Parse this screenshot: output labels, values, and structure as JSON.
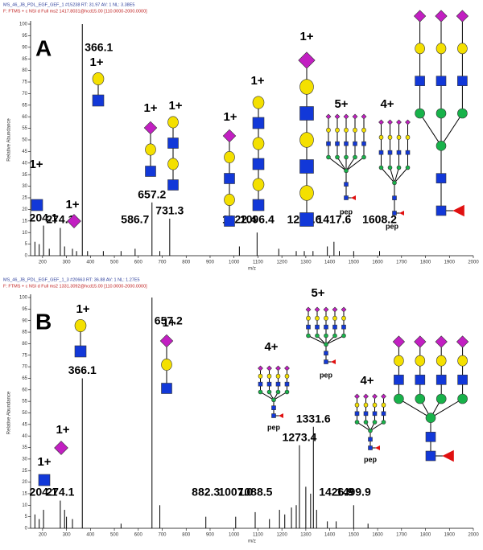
{
  "chart_data": [
    {
      "type": "bar",
      "panel": "A",
      "header": [
        "MS_46_JB_PDL_EGF_GEF_1 #15238 RT: 31.97 AV: 1 NL: 3.38E5",
        "F: FTMS + c NSI d Full ms2 1417.8031@hcd15.00 [110.0000-2000.0000]"
      ],
      "y_label": "Relative Abundance",
      "x_label": "m/z",
      "x": [
        168,
        186,
        204.1,
        228,
        274.1,
        292,
        325,
        342,
        366.1,
        388,
        454,
        528,
        586.7,
        657.2,
        690,
        731.3,
        1022.4,
        1096.4,
        1187,
        1260,
        1293.6,
        1330,
        1390,
        1417.6,
        1440,
        1500,
        1608.2
      ],
      "values": [
        6,
        5,
        13,
        3,
        12,
        4,
        3,
        2,
        100,
        2,
        2,
        2,
        3,
        23,
        2,
        16,
        4,
        10,
        3,
        2,
        2,
        2,
        4,
        6,
        2,
        2,
        2
      ],
      "x_labels": [
        null,
        null,
        "204.1",
        null,
        "274.1",
        null,
        null,
        null,
        "366.1",
        null,
        null,
        null,
        "586.7",
        "657.2",
        null,
        "731.3",
        "1022.4",
        "1096.4",
        null,
        null,
        "1293.6",
        null,
        null,
        "1417.6",
        null,
        null,
        "1608.2"
      ],
      "charge_labels": [
        "1+",
        "1+",
        "1+",
        "1+",
        "1+",
        "1+",
        "1+",
        "1+",
        "5+",
        "4+"
      ],
      "pep_labels": [
        "pep",
        "pep"
      ],
      "xlim": [
        150,
        2000
      ],
      "ylim": [
        0,
        100
      ],
      "xticks": [
        200,
        300,
        400,
        500,
        600,
        700,
        800,
        900,
        1000,
        1100,
        1200,
        1300,
        1400,
        1500,
        1600,
        1700,
        1800,
        1900,
        2000
      ],
      "yticks": [
        0,
        5,
        10,
        15,
        20,
        25,
        30,
        35,
        40,
        45,
        50,
        55,
        60,
        65,
        70,
        75,
        80,
        85,
        90,
        95,
        100
      ],
      "color": "#000000"
    },
    {
      "type": "bar",
      "panel": "B",
      "header": [
        "MS_46_JB_PDL_EGF_GEF_1_3 #20663 RT: 36.88 AV: 1 NL: 1.27E5",
        "F: FTMS + c NSI d Full ms2 1331.3092@hcd15.00 [110.0000-2000.0000]"
      ],
      "y_label": "Relative Abundance",
      "x_label": "m/z",
      "x": [
        168,
        186,
        204.1,
        274.1,
        292,
        300,
        325,
        366.1,
        528,
        657.2,
        690,
        882.3,
        1007.0,
        1088.5,
        1148,
        1190,
        1212,
        1240,
        1260,
        1273.4,
        1300,
        1320,
        1331.6,
        1345,
        1390,
        1426.9,
        1499.9,
        1560
      ],
      "values": [
        6,
        4,
        8,
        12,
        8,
        5,
        4,
        65,
        2,
        100,
        10,
        5,
        5,
        7,
        4,
        8,
        6,
        9,
        10,
        36,
        18,
        15,
        44,
        8,
        3,
        3,
        10,
        2
      ],
      "x_labels": [
        null,
        null,
        "204.1",
        "274.1",
        null,
        null,
        null,
        "366.1",
        null,
        "657.2",
        null,
        "882.3",
        "1007.0",
        "1088.5",
        null,
        null,
        null,
        null,
        null,
        "1273.4",
        null,
        null,
        "1331.6",
        null,
        null,
        "1426.9",
        "1499.9",
        null
      ],
      "charge_labels": [
        "1+",
        "1+",
        "1+",
        "1+",
        "4+",
        "5+",
        "4+"
      ],
      "pep_labels": [
        "pep",
        "pep",
        "pep"
      ],
      "xlim": [
        150,
        2000
      ],
      "ylim": [
        0,
        100
      ],
      "xticks": [
        200,
        300,
        400,
        500,
        600,
        700,
        800,
        900,
        1000,
        1100,
        1200,
        1300,
        1400,
        1500,
        1600,
        1700,
        1800,
        1900,
        2000
      ],
      "yticks": [
        0,
        5,
        10,
        15,
        20,
        25,
        30,
        35,
        40,
        45,
        50,
        55,
        60,
        65,
        70,
        75,
        80,
        85,
        90,
        95,
        100
      ],
      "color": "#000000"
    }
  ]
}
